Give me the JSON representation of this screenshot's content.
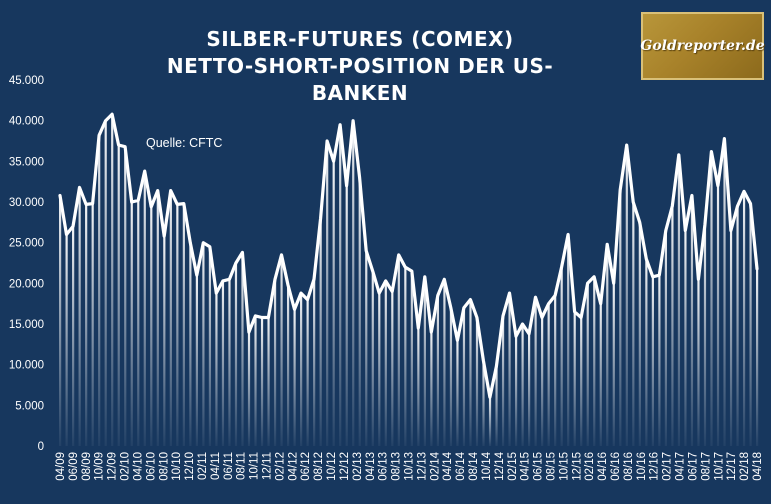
{
  "title_line1": "SILBER-FUTURES (COMEX)",
  "title_line2": "NETTO-SHORT-POSITION DER US-BANKEN",
  "logo_text": "Goldreporter.de",
  "colors": {
    "background": "#17375e",
    "line": "#ffffff",
    "logo": "#a8822a"
  },
  "chart_data": {
    "type": "line",
    "title": "SILBER-FUTURES (COMEX) NETTO-SHORT-POSITION DER US-BANKEN",
    "xlabel": "",
    "ylabel": "",
    "ylim": [
      0,
      45000
    ],
    "yticks": [
      0,
      5000,
      10000,
      15000,
      20000,
      25000,
      30000,
      35000,
      40000,
      45000
    ],
    "ytick_labels": [
      "0",
      "5.000",
      "10.000",
      "15.000",
      "20.000",
      "25.000",
      "30.000",
      "35.000",
      "40.000",
      "45.000"
    ],
    "xtick_labels": [
      "04/09",
      "06/09",
      "08/09",
      "10/09",
      "12/09",
      "02/10",
      "04/10",
      "06/10",
      "08/10",
      "10/10",
      "12/10",
      "02/11",
      "04/11",
      "06/11",
      "08/11",
      "10/11",
      "12/11",
      "02/12",
      "04/12",
      "06/12",
      "08/12",
      "10/12",
      "12/12",
      "02/13",
      "04/13",
      "06/13",
      "08/13",
      "10/13",
      "12/13",
      "02/14",
      "04/14",
      "06/14",
      "08/14",
      "10/14",
      "12/14",
      "02/15",
      "04/15",
      "06/15",
      "08/15",
      "10/15",
      "12/15",
      "02/16",
      "04/16",
      "06/16",
      "08/16",
      "10/16",
      "12/16",
      "02/17",
      "04/17",
      "06/17",
      "08/17",
      "10/17",
      "12/17",
      "02/18",
      "04/18"
    ],
    "annotation": "Quelle: CFTC",
    "grid": false,
    "fill_style": "vertical-gradient-bars",
    "values": [
      30800,
      26000,
      27000,
      31800,
      29700,
      29800,
      38200,
      40000,
      40800,
      37000,
      36800,
      30000,
      30200,
      33800,
      29400,
      31400,
      25800,
      31400,
      29700,
      29800,
      25000,
      21000,
      25000,
      24500,
      18800,
      20300,
      20500,
      22500,
      23800,
      14000,
      16000,
      15800,
      15800,
      20500,
      23500,
      19800,
      16800,
      18800,
      18000,
      20500,
      28000,
      37500,
      35000,
      39500,
      32000,
      40000,
      33000,
      24000,
      21500,
      18800,
      20300,
      19000,
      23500,
      22000,
      21500,
      14500,
      20800,
      14000,
      18500,
      20500,
      17000,
      13000,
      17000,
      18000,
      15800,
      10500,
      6000,
      9800,
      16000,
      18800,
      13500,
      15000,
      13800,
      18300,
      15800,
      17500,
      18500,
      22000,
      26000,
      16500,
      15800,
      20000,
      20800,
      17500,
      24800,
      20000,
      31500,
      37000,
      30000,
      27500,
      23000,
      20800,
      21000,
      26500,
      29500,
      35800,
      26500,
      30800,
      20500,
      27200,
      36200,
      32000,
      37800,
      26500,
      29500,
      31300,
      29800,
      21800
    ]
  }
}
